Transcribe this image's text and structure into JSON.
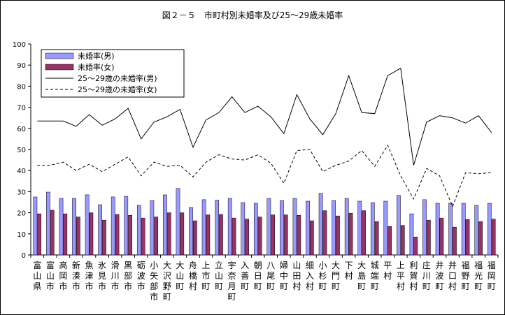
{
  "chart_data": {
    "type": "bar",
    "title": "図２－５　市町村別未婚率及び25～29歳未婚率",
    "xlabel": "",
    "ylabel": "",
    "ylim": [
      0,
      100
    ],
    "yticks": [
      0,
      10,
      20,
      30,
      40,
      50,
      60,
      70,
      80,
      90,
      100
    ],
    "grid": false,
    "legend_position": "top-left",
    "categories": [
      "富山県",
      "富山市",
      "高岡市",
      "新湊市",
      "魚津市",
      "氷見市",
      "滑川市",
      "黒部市",
      "砺波市",
      "小矢部市",
      "大沢野町",
      "大山町",
      "舟橋村",
      "上市町",
      "立山町",
      "宇奈月町",
      "入善町",
      "朝日町",
      "八尾町",
      "婦中町",
      "山田村",
      "細入村",
      "小杉町",
      "大門町",
      "下村",
      "大島町",
      "城端町",
      "平村",
      "上平村",
      "利賀村",
      "庄川町",
      "井波町",
      "井口村",
      "福野町",
      "福光町",
      "福岡町"
    ],
    "series": [
      {
        "name": "未婚率(男)",
        "kind": "bar",
        "color": "#9999ff",
        "values": [
          27.5,
          29.8,
          26.8,
          26.8,
          28.5,
          23.8,
          27.5,
          27.8,
          23.5,
          25.8,
          28.5,
          31.5,
          22.5,
          26.2,
          26.0,
          26.8,
          24.8,
          24.5,
          26.8,
          25.8,
          26.8,
          25.5,
          29.2,
          25.8,
          26.8,
          25.5,
          24.8,
          25.5,
          28.2,
          19.5,
          26.2,
          24.5,
          24.5,
          24.5,
          23.5,
          24.5
        ]
      },
      {
        "name": "未婚率(女)",
        "kind": "bar",
        "color": "#993366",
        "values": [
          19.5,
          21.2,
          19.5,
          18.0,
          20.0,
          16.5,
          19.2,
          18.8,
          17.5,
          18.0,
          20.0,
          20.0,
          16.2,
          19.0,
          19.2,
          17.5,
          17.0,
          18.0,
          19.0,
          19.0,
          18.8,
          16.2,
          21.0,
          18.5,
          19.8,
          21.0,
          15.8,
          13.5,
          14.0,
          8.5,
          16.5,
          17.5,
          13.2,
          16.8,
          15.8,
          17.0
        ]
      },
      {
        "name": "25～29歳の未婚率(男)",
        "kind": "line",
        "dash": "solid",
        "color": "#000000",
        "values": [
          63.5,
          63.5,
          63.5,
          61.0,
          66.5,
          61.5,
          64.5,
          69.5,
          55.0,
          63.0,
          65.5,
          69.0,
          51.0,
          64.0,
          67.5,
          75.0,
          67.5,
          70.5,
          65.5,
          57.5,
          76.0,
          64.5,
          57.0,
          67.0,
          85.0,
          67.5,
          67.0,
          85.0,
          88.5,
          42.5,
          63.0,
          66.0,
          65.0,
          62.5,
          66.0,
          58.0
        ]
      },
      {
        "name": "25～29歳の未婚率(女)",
        "kind": "line",
        "dash": "dashed",
        "color": "#000000",
        "values": [
          42.5,
          42.5,
          44.0,
          40.0,
          43.0,
          39.5,
          43.0,
          46.5,
          37.5,
          44.0,
          42.0,
          42.5,
          37.0,
          44.0,
          47.5,
          45.5,
          45.0,
          47.5,
          43.5,
          34.0,
          49.5,
          50.0,
          39.5,
          42.5,
          44.5,
          49.5,
          42.0,
          52.0,
          37.5,
          26.5,
          41.0,
          37.5,
          23.0,
          39.0,
          38.5,
          39.0
        ]
      }
    ]
  }
}
